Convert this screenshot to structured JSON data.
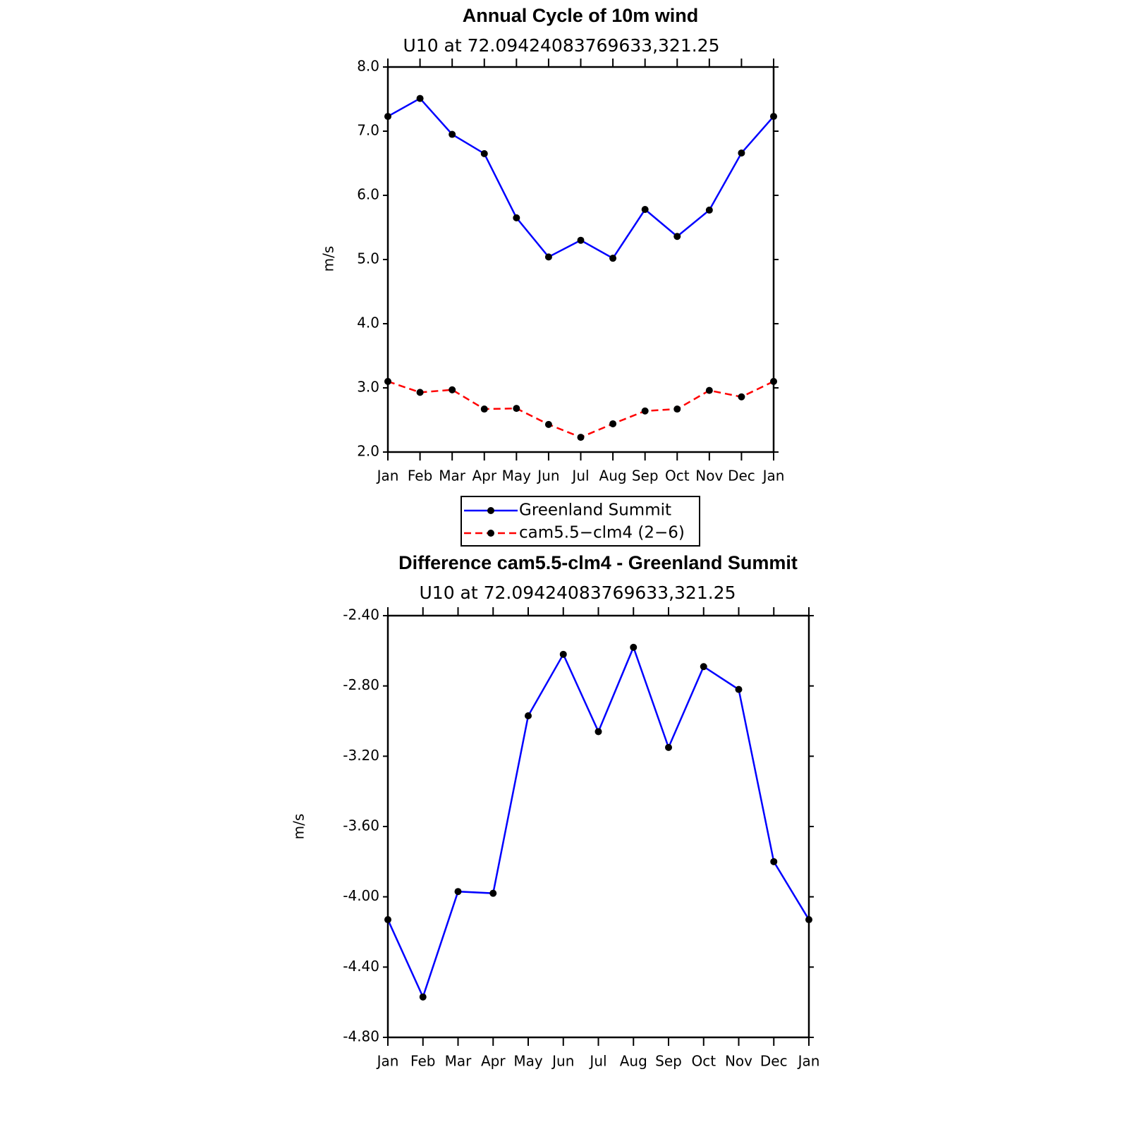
{
  "chart_data": [
    {
      "type": "line",
      "title": "Annual Cycle of 10m wind",
      "subtitle": "U10 at 72.09424083769633,321.25",
      "y_label": "m/s",
      "categories": [
        "Jan",
        "Feb",
        "Mar",
        "Apr",
        "May",
        "Jun",
        "Jul",
        "Aug",
        "Sep",
        "Oct",
        "Nov",
        "Dec",
        "Jan"
      ],
      "series": [
        {
          "name": "Greenland Summit",
          "color": "#0000ff",
          "line_style": "solid",
          "values": [
            7.23,
            7.51,
            6.95,
            6.65,
            5.65,
            5.04,
            5.3,
            5.02,
            5.78,
            5.36,
            5.77,
            6.66,
            7.23
          ]
        },
        {
          "name": "cam5.5−clm4 (2−6)",
          "color": "#ff0000",
          "line_style": "dashed",
          "values": [
            3.1,
            2.93,
            2.97,
            2.67,
            2.68,
            2.43,
            2.23,
            2.44,
            2.64,
            2.67,
            2.96,
            2.86,
            3.1
          ]
        }
      ],
      "ylim": [
        2,
        8
      ],
      "yticks": [
        {
          "value": 2,
          "label": "2.0"
        },
        {
          "value": 3,
          "label": "3.0"
        },
        {
          "value": 4,
          "label": "4.0"
        },
        {
          "value": 5,
          "label": "5.0"
        },
        {
          "value": 6,
          "label": "6.0"
        },
        {
          "value": 7,
          "label": "7.0"
        },
        {
          "value": 8,
          "label": "8.0"
        }
      ],
      "legend": "below"
    },
    {
      "type": "line",
      "title": "Difference cam5.5-clm4 - Greenland Summit",
      "subtitle": "U10 at 72.09424083769633,321.25",
      "y_label": "m/s",
      "categories": [
        "Jan",
        "Feb",
        "Mar",
        "Apr",
        "May",
        "Jun",
        "Jul",
        "Aug",
        "Sep",
        "Oct",
        "Nov",
        "Dec",
        "Jan"
      ],
      "values": [
        -4.13,
        -4.57,
        -3.97,
        -3.98,
        -2.97,
        -2.62,
        -3.06,
        -2.58,
        -3.15,
        -2.69,
        -2.82,
        -3.8,
        -4.13
      ],
      "color": "#0000ff",
      "ylim": [
        -4.8,
        -2.4
      ],
      "yticks": [
        {
          "value": -4.8,
          "label": "-4.80"
        },
        {
          "value": -4.4,
          "label": "-4.40"
        },
        {
          "value": -4,
          "label": "-4.00"
        },
        {
          "value": -3.6,
          "label": "-3.60"
        },
        {
          "value": -3.2,
          "label": "-3.20"
        },
        {
          "value": -2.8,
          "label": "-2.80"
        },
        {
          "value": -2.4,
          "label": "-2.40"
        }
      ]
    }
  ]
}
